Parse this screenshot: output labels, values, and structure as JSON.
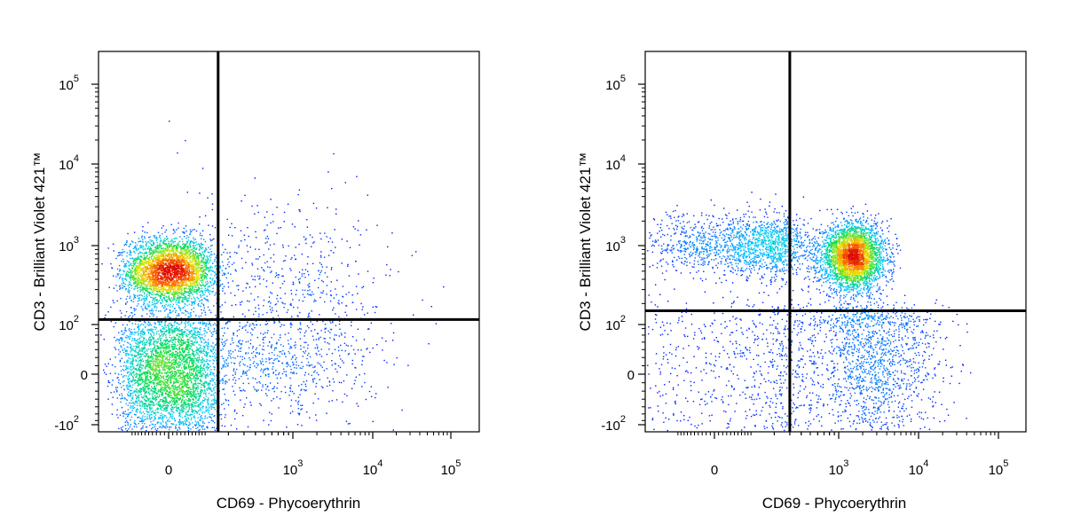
{
  "chart_data": [
    {
      "type": "scatter",
      "style": "density-colored dot plot (pseudocolor)",
      "xlabel": "CD69 - Phycoerythrin",
      "ylabel": "CD3 - Brilliant Violet 421™",
      "xscale": "biexponential",
      "yscale": "biexponential",
      "x_ticks": [
        {
          "base": "0",
          "exp": ""
        },
        {
          "base": "10",
          "exp": "3"
        },
        {
          "base": "10",
          "exp": "4"
        },
        {
          "base": "10",
          "exp": "5"
        }
      ],
      "y_ticks": [
        {
          "base": "-10",
          "exp": "2"
        },
        {
          "base": "0",
          "exp": ""
        },
        {
          "base": "10",
          "exp": "2"
        },
        {
          "base": "10",
          "exp": "3"
        },
        {
          "base": "10",
          "exp": "4"
        },
        {
          "base": "10",
          "exp": "5"
        }
      ],
      "gate_x": 150,
      "gate_y": 120,
      "populations": [
        {
          "x_center": 0,
          "y_center": 500,
          "x_spread": 60,
          "y_spread": 0.45,
          "density": "high"
        },
        {
          "x_center": 0,
          "y_center": 0,
          "x_spread": 70,
          "y_spread": 60,
          "density": "high"
        },
        {
          "x_center": 800,
          "y_center": 300,
          "x_spread": 1.5,
          "y_spread": 1.2,
          "density": "low"
        },
        {
          "x_center": 500,
          "y_center": 20,
          "x_spread": 1.5,
          "y_spread": 50,
          "density": "low"
        }
      ],
      "outliers": [
        {
          "x": 0,
          "y": 35000
        },
        {
          "x": 40,
          "y": 20000
        },
        {
          "x": 90,
          "y": 9000
        },
        {
          "x": 20,
          "y": 14000
        }
      ]
    },
    {
      "type": "scatter",
      "style": "density-colored dot plot (pseudocolor)",
      "xlabel": "CD69 - Phycoerythrin",
      "ylabel": "CD3 - Brilliant Violet 421™",
      "xscale": "biexponential",
      "yscale": "biexponential",
      "x_ticks": [
        {
          "base": "0",
          "exp": ""
        },
        {
          "base": "10",
          "exp": "3"
        },
        {
          "base": "10",
          "exp": "4"
        },
        {
          "base": "10",
          "exp": "5"
        }
      ],
      "y_ticks": [
        {
          "base": "-10",
          "exp": "2"
        },
        {
          "base": "0",
          "exp": ""
        },
        {
          "base": "10",
          "exp": "2"
        },
        {
          "base": "10",
          "exp": "3"
        },
        {
          "base": "10",
          "exp": "4"
        },
        {
          "base": "10",
          "exp": "5"
        }
      ],
      "gate_x": 300,
      "gate_y": 160,
      "populations": [
        {
          "x_center": 1500,
          "y_center": 750,
          "x_spread": 0.45,
          "y_spread": 0.45,
          "density": "high"
        },
        {
          "x_center": 100,
          "y_center": 1000,
          "x_spread": 150,
          "y_spread": 0.45,
          "density": "medium"
        },
        {
          "x_center": 2500,
          "y_center": 30,
          "x_spread": 1.0,
          "y_spread": 80,
          "density": "medium"
        },
        {
          "x_center": 100,
          "y_center": 10,
          "x_spread": 200,
          "y_spread": 90,
          "density": "low"
        }
      ],
      "outliers": []
    }
  ]
}
